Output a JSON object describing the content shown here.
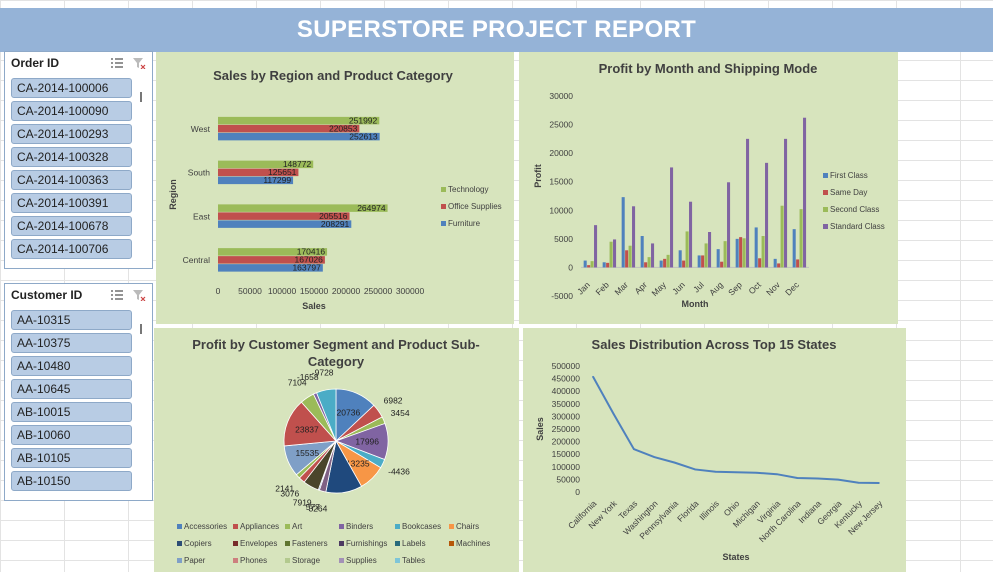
{
  "report": {
    "title": "SUPERSTORE PROJECT REPORT"
  },
  "slicers": {
    "order": {
      "title": "Order ID",
      "items": [
        "CA-2014-100006",
        "CA-2014-100090",
        "CA-2014-100293",
        "CA-2014-100328",
        "CA-2014-100363",
        "CA-2014-100391",
        "CA-2014-100678",
        "CA-2014-100706"
      ]
    },
    "customer": {
      "title": "Customer ID",
      "items": [
        "AA-10315",
        "AA-10375",
        "AA-10480",
        "AA-10645",
        "AB-10015",
        "AB-10060",
        "AB-10105",
        "AB-10150"
      ]
    },
    "icons": {
      "multi_select": "multi-select-icon",
      "clear_filter": "clear-filter-icon"
    }
  },
  "chart_data": [
    {
      "type": "bar",
      "orientation": "horizontal",
      "title": "Sales by Region and Product Category",
      "xlabel": "Sales",
      "ylabel": "Region",
      "categories": [
        "Central",
        "East",
        "South",
        "West"
      ],
      "xlim": [
        0,
        300000
      ],
      "xticks": [
        "0",
        "50000",
        "100000",
        "150000",
        "200000",
        "250000",
        "300000"
      ],
      "series": [
        {
          "name": "Furniture",
          "color": "#4f81bd",
          "values": [
            163797,
            208291,
            117299,
            252613
          ]
        },
        {
          "name": "Office Supplies",
          "color": "#c0504d",
          "values": [
            167026,
            205516,
            125651,
            220853
          ]
        },
        {
          "name": "Technology",
          "color": "#9bbb59",
          "values": [
            170416,
            264974,
            148772,
            251992
          ]
        }
      ],
      "data_labels": true,
      "legend": "right"
    },
    {
      "type": "bar",
      "title": "Profit by Month and Shipping Mode",
      "xlabel": "Month",
      "ylabel": "Profit",
      "categories": [
        "Jan",
        "Feb",
        "Mar",
        "Apr",
        "May",
        "Jun",
        "Jul",
        "Aug",
        "Sep",
        "Oct",
        "Nov",
        "Dec"
      ],
      "ylim": [
        -5000,
        30000
      ],
      "yticks": [
        "30000",
        "25000",
        "20000",
        "15000",
        "10000",
        "5000",
        "0",
        "-5000"
      ],
      "series": [
        {
          "name": "First Class",
          "color": "#4f81bd",
          "values": [
            1200,
            900,
            12300,
            5500,
            1200,
            3000,
            2100,
            3200,
            5000,
            7000,
            1500,
            6700
          ]
        },
        {
          "name": "Same Day",
          "color": "#c0504d",
          "values": [
            400,
            800,
            3000,
            900,
            1500,
            1200,
            2100,
            1000,
            5300,
            1600,
            700,
            1400
          ]
        },
        {
          "name": "Second Class",
          "color": "#9bbb59",
          "values": [
            1100,
            4500,
            3800,
            1800,
            2200,
            6300,
            4200,
            4600,
            5100,
            5500,
            10800,
            10200
          ]
        },
        {
          "name": "Standard Class",
          "color": "#8064a2",
          "values": [
            7400,
            4900,
            10700,
            4200,
            17500,
            11500,
            6200,
            14900,
            22500,
            18300,
            22500,
            26200
          ]
        }
      ],
      "legend": "right"
    },
    {
      "type": "pie",
      "title": "Profit by Customer Segment and Product Sub-Category",
      "slices": [
        {
          "label": "20736",
          "value": 20736,
          "color": "#4f81bd"
        },
        {
          "label": "6982",
          "value": 6982,
          "color": "#c0504d"
        },
        {
          "label": "3454",
          "value": 3454,
          "color": "#9bbb59"
        },
        {
          "label": "17996",
          "value": 17996,
          "color": "#8064a2"
        },
        {
          "label": "-4436",
          "value": 4436,
          "color": "#4bacc6"
        },
        {
          "label": "13235",
          "value": 13235,
          "color": "#f79646"
        },
        {
          "label": "",
          "value": 18000,
          "color": "#1f497d"
        },
        {
          "label": "3264",
          "value": 3264,
          "color": "#7f6084"
        },
        {
          "label": "577",
          "value": 577,
          "color": "#4f81bd"
        },
        {
          "label": "7919",
          "value": 7919,
          "color": "#4a452a"
        },
        {
          "label": "3076",
          "value": 3076,
          "color": "#c0504d"
        },
        {
          "label": "2141",
          "value": 2141,
          "color": "#9bbb59"
        },
        {
          "label": "15535",
          "value": 15535,
          "color": "#7f9fc7"
        },
        {
          "label": "23837",
          "value": 23837,
          "color": "#c0504d"
        },
        {
          "label": "7104",
          "value": 7104,
          "color": "#9bbb59"
        },
        {
          "label": "-1658",
          "value": 1658,
          "color": "#8064a2"
        },
        {
          "label": "-9728",
          "value": 9728,
          "color": "#4bacc6"
        }
      ],
      "legend": [
        "Accessories",
        "Appliances",
        "Art",
        "Binders",
        "Bookcases",
        "Chairs",
        "Copiers",
        "Envelopes",
        "Fasteners",
        "Furnishings",
        "Labels",
        "Machines",
        "Paper",
        "Phones",
        "Storage",
        "Supplies",
        "Tables"
      ],
      "legend_colors": [
        "#4f81bd",
        "#c0504d",
        "#9bbb59",
        "#8064a2",
        "#4bacc6",
        "#f79646",
        "#2c4d75",
        "#772c2a",
        "#5f7530",
        "#4d3b62",
        "#276a7c",
        "#b65708",
        "#7f9fc7",
        "#cd7f7e",
        "#b3c98e",
        "#a391b7",
        "#7ec5d8"
      ]
    },
    {
      "type": "line",
      "title": "Sales Distribution Across Top 15 States",
      "xlabel": "States",
      "ylabel": "Sales",
      "categories": [
        "California",
        "New York",
        "Texas",
        "Washington",
        "Pennsylvania",
        "Florida",
        "Illinois",
        "Ohio",
        "Michigan",
        "Virginia",
        "North Carolina",
        "Indiana",
        "Georgia",
        "Kentucky",
        "New Jersey"
      ],
      "values": [
        457688,
        310876,
        170188,
        138641,
        116512,
        89474,
        80166,
        78258,
        76270,
        70637,
        55603,
        53555,
        49096,
        36592,
        35764
      ],
      "ylim": [
        0,
        500000
      ],
      "yticks": [
        "500000",
        "450000",
        "400000",
        "350000",
        "300000",
        "250000",
        "200000",
        "150000",
        "100000",
        "50000",
        "0"
      ],
      "color": "#4f81bd"
    }
  ]
}
